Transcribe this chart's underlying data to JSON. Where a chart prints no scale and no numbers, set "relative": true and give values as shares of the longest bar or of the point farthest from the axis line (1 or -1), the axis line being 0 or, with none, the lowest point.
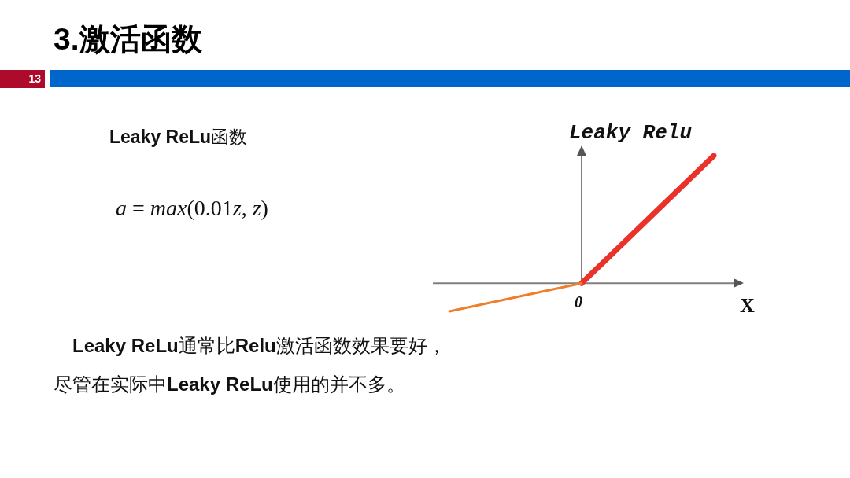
{
  "chart_data": {
    "type": "line",
    "title": "3.激活函数",
    "xlabel": "X",
    "ylabel": "Leaky Relu",
    "categories": [
      null,
      null,
      null
    ],
    "series": [
      {
        "color": "#f07f2a",
        "values": [
          -0.22,
          0,
          null
        ]
      },
      {
        "color": "#e8322a",
        "values": [
          null,
          0,
          1
        ]
      }
    ],
    "relative": true,
    "marker": "none",
    "annotations": [
      "13",
      "Leaky ReLu函数",
      "a = max(0.01z, z)",
      "Leaky ReLu通常比Relu激活函数效果要好，",
      "尽管在实际中Leaky ReLu使用的并不多。",
      {
        "text": "0",
        "y": 0
      }
    ]
  }
}
